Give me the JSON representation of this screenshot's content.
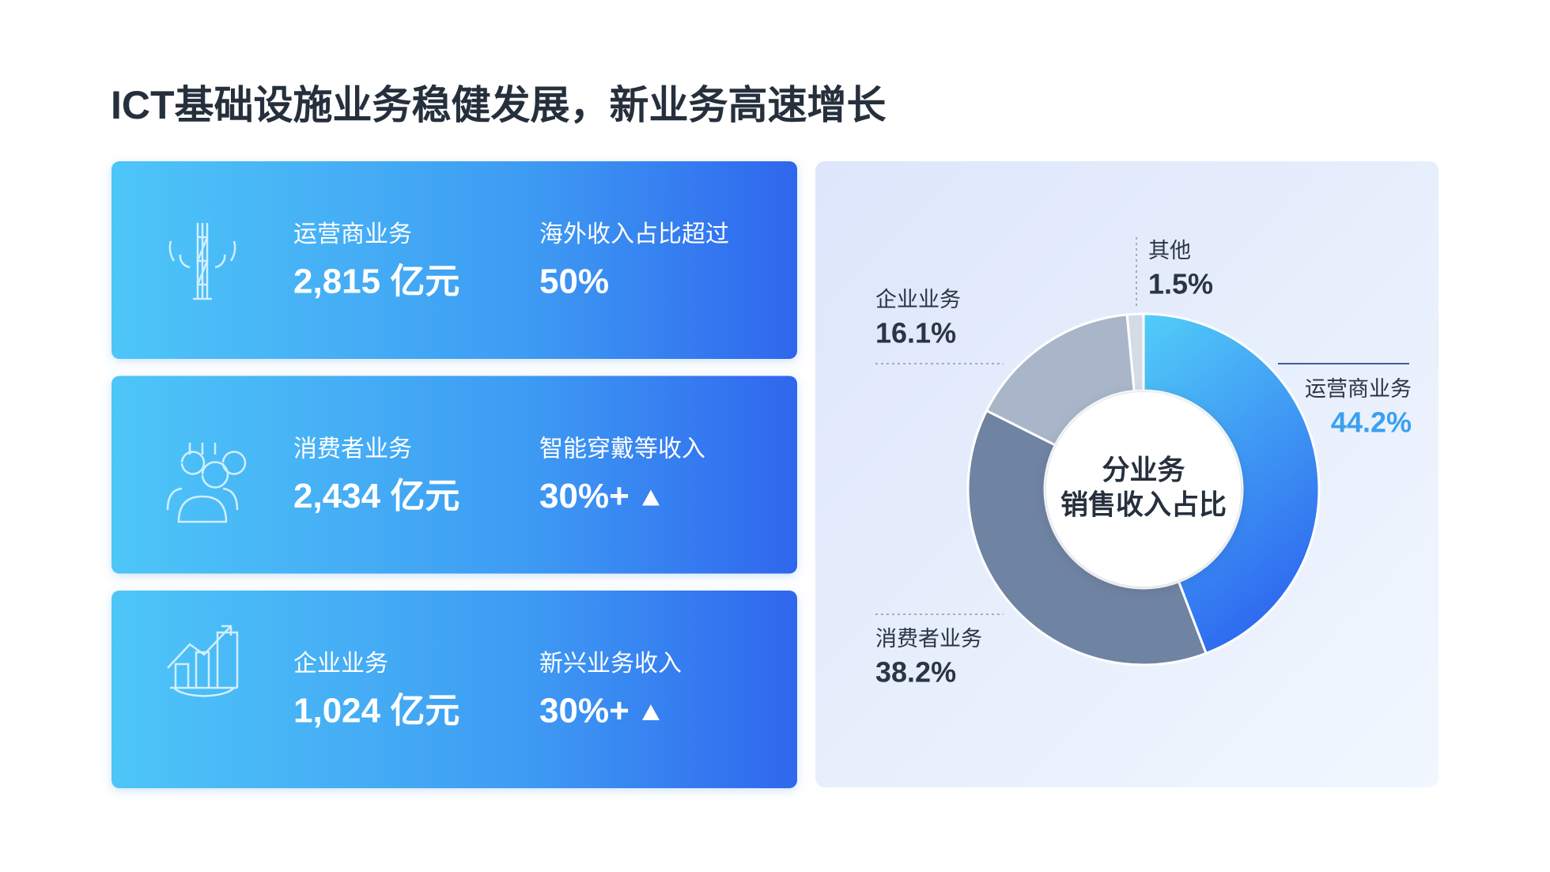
{
  "title": "ICT基础设施业务稳健发展，新业务高速增长",
  "cards": [
    {
      "name": "运营商业务",
      "amount": "2,815 亿元",
      "highlight_label": "海外收入占比超过",
      "highlight_value": "50%"
    },
    {
      "name": "消费者业务",
      "amount": "2,434 亿元",
      "highlight_label": "智能穿戴等收入",
      "highlight_value": "30%+"
    },
    {
      "name": "企业业务",
      "amount": "1,024 亿元",
      "highlight_label": "新兴业务收入",
      "highlight_value": "30%+"
    }
  ],
  "chart_data": {
    "type": "donut",
    "center_text": [
      "分业务",
      "销售收入占比"
    ],
    "categories": [
      "运营商业务",
      "消费者业务",
      "企业业务",
      "其他"
    ],
    "values": [
      44.2,
      38.2,
      16.1,
      1.5
    ],
    "value_labels": [
      "44.2%",
      "38.2%",
      "16.1%",
      "1.5%"
    ],
    "colors": [
      "#2f6cf0",
      "#6f83a3",
      "#a9b6c9",
      "#d5dbe5"
    ],
    "highlight_color": "#3aa0f0"
  }
}
